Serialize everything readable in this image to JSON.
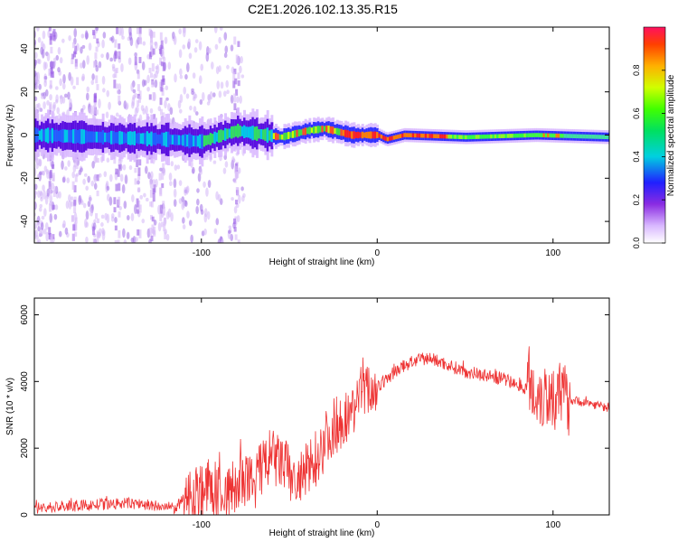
{
  "figure": {
    "title": "C2E1.2026.102.13.35.R15"
  },
  "chart_data": [
    {
      "type": "heatmap",
      "xlabel": "Height of straight line (km)",
      "ylabel": "Frequency (Hz)",
      "xlim": [
        -195,
        132
      ],
      "ylim": [
        -50,
        50
      ],
      "xticks": [
        -100,
        0,
        100
      ],
      "yticks": [
        -40,
        -20,
        0,
        20,
        40
      ],
      "colorbar": {
        "label": "Normalized spectral amplitude",
        "range": [
          0,
          1
        ],
        "ticks": [
          0.0,
          0.2,
          0.4,
          0.6,
          0.8
        ]
      },
      "ridge": [
        {
          "x": -195,
          "y": 0
        },
        {
          "x": -120,
          "y": -2
        },
        {
          "x": -100,
          "y": -3
        },
        {
          "x": -80,
          "y": 2
        },
        {
          "x": -55,
          "y": -1
        },
        {
          "x": -40,
          "y": 2
        },
        {
          "x": -30,
          "y": 3
        },
        {
          "x": -15,
          "y": 0
        },
        {
          "x": 0,
          "y": 0
        },
        {
          "x": 5,
          "y": -2
        },
        {
          "x": 15,
          "y": 0
        },
        {
          "x": 50,
          "y": -1
        },
        {
          "x": 90,
          "y": 0
        },
        {
          "x": 132,
          "y": -1
        }
      ]
    },
    {
      "type": "line",
      "xlabel": "Height of straight line (km)",
      "ylabel": "SNR (10 * v/v)",
      "xlim": [
        -195,
        132
      ],
      "ylim": [
        0,
        6500
      ],
      "xticks": [
        -100,
        0,
        100
      ],
      "yticks": [
        0,
        2000,
        4000,
        6000
      ],
      "series": [
        {
          "color": "#ee3333",
          "x": [
            -195,
            -160,
            -140,
            -125,
            -115,
            -105,
            -95,
            -85,
            -80,
            -70,
            -62,
            -55,
            -45,
            -35,
            -28,
            -22,
            -15,
            -10,
            0,
            10,
            20,
            30,
            40,
            50,
            60,
            70,
            80,
            90,
            95,
            100,
            105,
            115,
            125,
            132
          ],
          "y": [
            200,
            300,
            350,
            250,
            200,
            700,
            800,
            600,
            900,
            1000,
            1700,
            1600,
            900,
            1700,
            2400,
            2800,
            3000,
            3700,
            3800,
            4300,
            4600,
            4700,
            4500,
            4300,
            4200,
            4100,
            3900,
            3700,
            3600,
            3600,
            3500,
            3400,
            3300,
            3200
          ]
        }
      ]
    }
  ]
}
